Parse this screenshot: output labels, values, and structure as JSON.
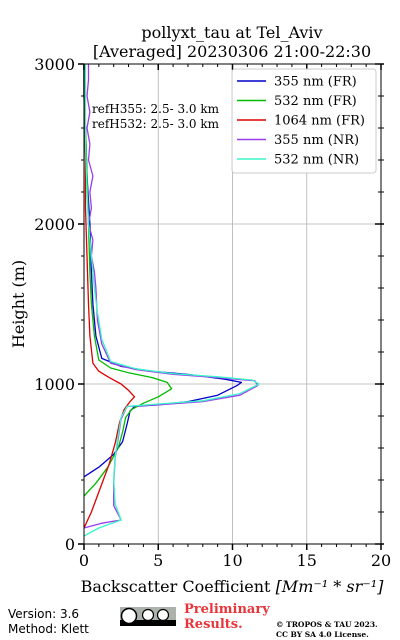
{
  "chart_data": {
    "type": "line",
    "title_line1": "pollyxt_tau at Tel_Aviv",
    "title_line2": "[Averaged] 20230306 21:00-22:30",
    "xlabel_text": "Backscatter Coefficient ",
    "xlabel_unit": "[Mm⁻¹ * sr⁻¹]",
    "ylabel": "Height (m)",
    "xlim": [
      0,
      20
    ],
    "ylim": [
      0,
      3000
    ],
    "xticks": [
      0,
      5,
      10,
      15,
      20
    ],
    "yticks": [
      0,
      1000,
      2000,
      3000
    ],
    "grid": true,
    "legend_position": "top-right",
    "annotations": [
      "refH355:  2.5- 3.0 km",
      "refH532:  2.5- 3.0 km"
    ],
    "series": [
      {
        "name": "355 nm (FR)",
        "color": "#0000cc",
        "points": [
          [
            0.0,
            420
          ],
          [
            1.0,
            480
          ],
          [
            2.0,
            560
          ],
          [
            2.6,
            640
          ],
          [
            2.9,
            750
          ],
          [
            3.1,
            830
          ],
          [
            3.4,
            860
          ],
          [
            5.0,
            870
          ],
          [
            7.0,
            890
          ],
          [
            9.0,
            930
          ],
          [
            10.3,
            990
          ],
          [
            10.6,
            1010
          ],
          [
            9.5,
            1030
          ],
          [
            7.0,
            1060
          ],
          [
            4.5,
            1080
          ],
          [
            2.5,
            1110
          ],
          [
            1.2,
            1160
          ],
          [
            0.8,
            1300
          ],
          [
            0.6,
            1500
          ],
          [
            0.5,
            1700
          ],
          [
            0.4,
            2000
          ],
          [
            0.2,
            2300
          ],
          [
            0.1,
            2600
          ],
          [
            0.0,
            2800
          ],
          [
            0.0,
            3000
          ]
        ]
      },
      {
        "name": "532 nm (FR)",
        "color": "#00bb00",
        "points": [
          [
            0.0,
            300
          ],
          [
            0.8,
            380
          ],
          [
            1.6,
            480
          ],
          [
            2.3,
            600
          ],
          [
            2.6,
            700
          ],
          [
            2.8,
            790
          ],
          [
            3.2,
            840
          ],
          [
            4.0,
            880
          ],
          [
            5.0,
            920
          ],
          [
            5.9,
            970
          ],
          [
            5.6,
            1010
          ],
          [
            4.6,
            1040
          ],
          [
            3.0,
            1070
          ],
          [
            1.8,
            1100
          ],
          [
            1.0,
            1150
          ],
          [
            0.7,
            1300
          ],
          [
            0.5,
            1500
          ],
          [
            0.4,
            1700
          ],
          [
            0.3,
            2000
          ],
          [
            0.2,
            2300
          ],
          [
            0.1,
            2600
          ],
          [
            0.0,
            2800
          ],
          [
            0.0,
            3000
          ]
        ]
      },
      {
        "name": "1064 nm (FR)",
        "color": "#dd0000",
        "points": [
          [
            0.0,
            100
          ],
          [
            0.5,
            200
          ],
          [
            1.1,
            350
          ],
          [
            1.7,
            500
          ],
          [
            2.1,
            630
          ],
          [
            2.4,
            760
          ],
          [
            2.7,
            840
          ],
          [
            3.1,
            890
          ],
          [
            3.4,
            920
          ],
          [
            3.0,
            960
          ],
          [
            2.5,
            1000
          ],
          [
            1.7,
            1040
          ],
          [
            1.0,
            1080
          ],
          [
            0.6,
            1130
          ],
          [
            0.4,
            1300
          ],
          [
            0.3,
            1500
          ],
          [
            0.2,
            1800
          ],
          [
            0.1,
            2100
          ],
          [
            0.1,
            2400
          ],
          [
            0.0,
            2800
          ],
          [
            0.0,
            3000
          ]
        ]
      },
      {
        "name": "355 nm (NR)",
        "color": "#9a3cf0",
        "points": [
          [
            0.0,
            100
          ],
          [
            1.2,
            130
          ],
          [
            2.5,
            150
          ],
          [
            2.0,
            240
          ],
          [
            2.0,
            380
          ],
          [
            2.1,
            540
          ],
          [
            2.3,
            660
          ],
          [
            2.5,
            780
          ],
          [
            2.9,
            860
          ],
          [
            5.0,
            870
          ],
          [
            8.0,
            890
          ],
          [
            10.5,
            930
          ],
          [
            11.7,
            990
          ],
          [
            11.5,
            1020
          ],
          [
            9.0,
            1040
          ],
          [
            6.0,
            1060
          ],
          [
            3.5,
            1090
          ],
          [
            1.8,
            1130
          ],
          [
            1.2,
            1250
          ],
          [
            0.9,
            1400
          ],
          [
            0.8,
            1600
          ],
          [
            0.7,
            1700
          ],
          [
            0.5,
            1800
          ],
          [
            0.6,
            1900
          ],
          [
            0.3,
            2000
          ],
          [
            0.5,
            2100
          ],
          [
            0.4,
            2200
          ],
          [
            0.6,
            2300
          ],
          [
            0.3,
            2400
          ],
          [
            0.4,
            2500
          ],
          [
            0.2,
            2600
          ],
          [
            0.4,
            2700
          ],
          [
            0.2,
            2800
          ],
          [
            0.3,
            2900
          ],
          [
            0.3,
            3000
          ]
        ]
      },
      {
        "name": "532 nm (NR)",
        "color": "#3cf5c8",
        "points": [
          [
            0.0,
            50
          ],
          [
            1.0,
            100
          ],
          [
            2.5,
            150
          ],
          [
            2.1,
            250
          ],
          [
            2.0,
            400
          ],
          [
            2.1,
            550
          ],
          [
            2.3,
            680
          ],
          [
            2.5,
            790
          ],
          [
            2.9,
            860
          ],
          [
            5.0,
            875
          ],
          [
            8.0,
            895
          ],
          [
            10.5,
            940
          ],
          [
            11.8,
            1000
          ],
          [
            11.3,
            1025
          ],
          [
            9.0,
            1045
          ],
          [
            6.0,
            1065
          ],
          [
            3.5,
            1095
          ],
          [
            1.8,
            1140
          ],
          [
            1.2,
            1280
          ],
          [
            0.9,
            1450
          ],
          [
            0.7,
            1600
          ],
          [
            0.5,
            1800
          ],
          [
            0.3,
            2000
          ],
          [
            0.2,
            2200
          ],
          [
            0.1,
            2500
          ],
          [
            0.1,
            2800
          ],
          [
            0.1,
            3000
          ]
        ]
      }
    ]
  },
  "footer": {
    "version": "Version: 3.6",
    "method": "Method: Klett",
    "preliminary_line1": "Preliminary",
    "preliminary_line2": "Results.",
    "copyright_line1": "© TROPOS & TAU 2023.",
    "copyright_line2": "CC BY SA 4.0 License."
  }
}
